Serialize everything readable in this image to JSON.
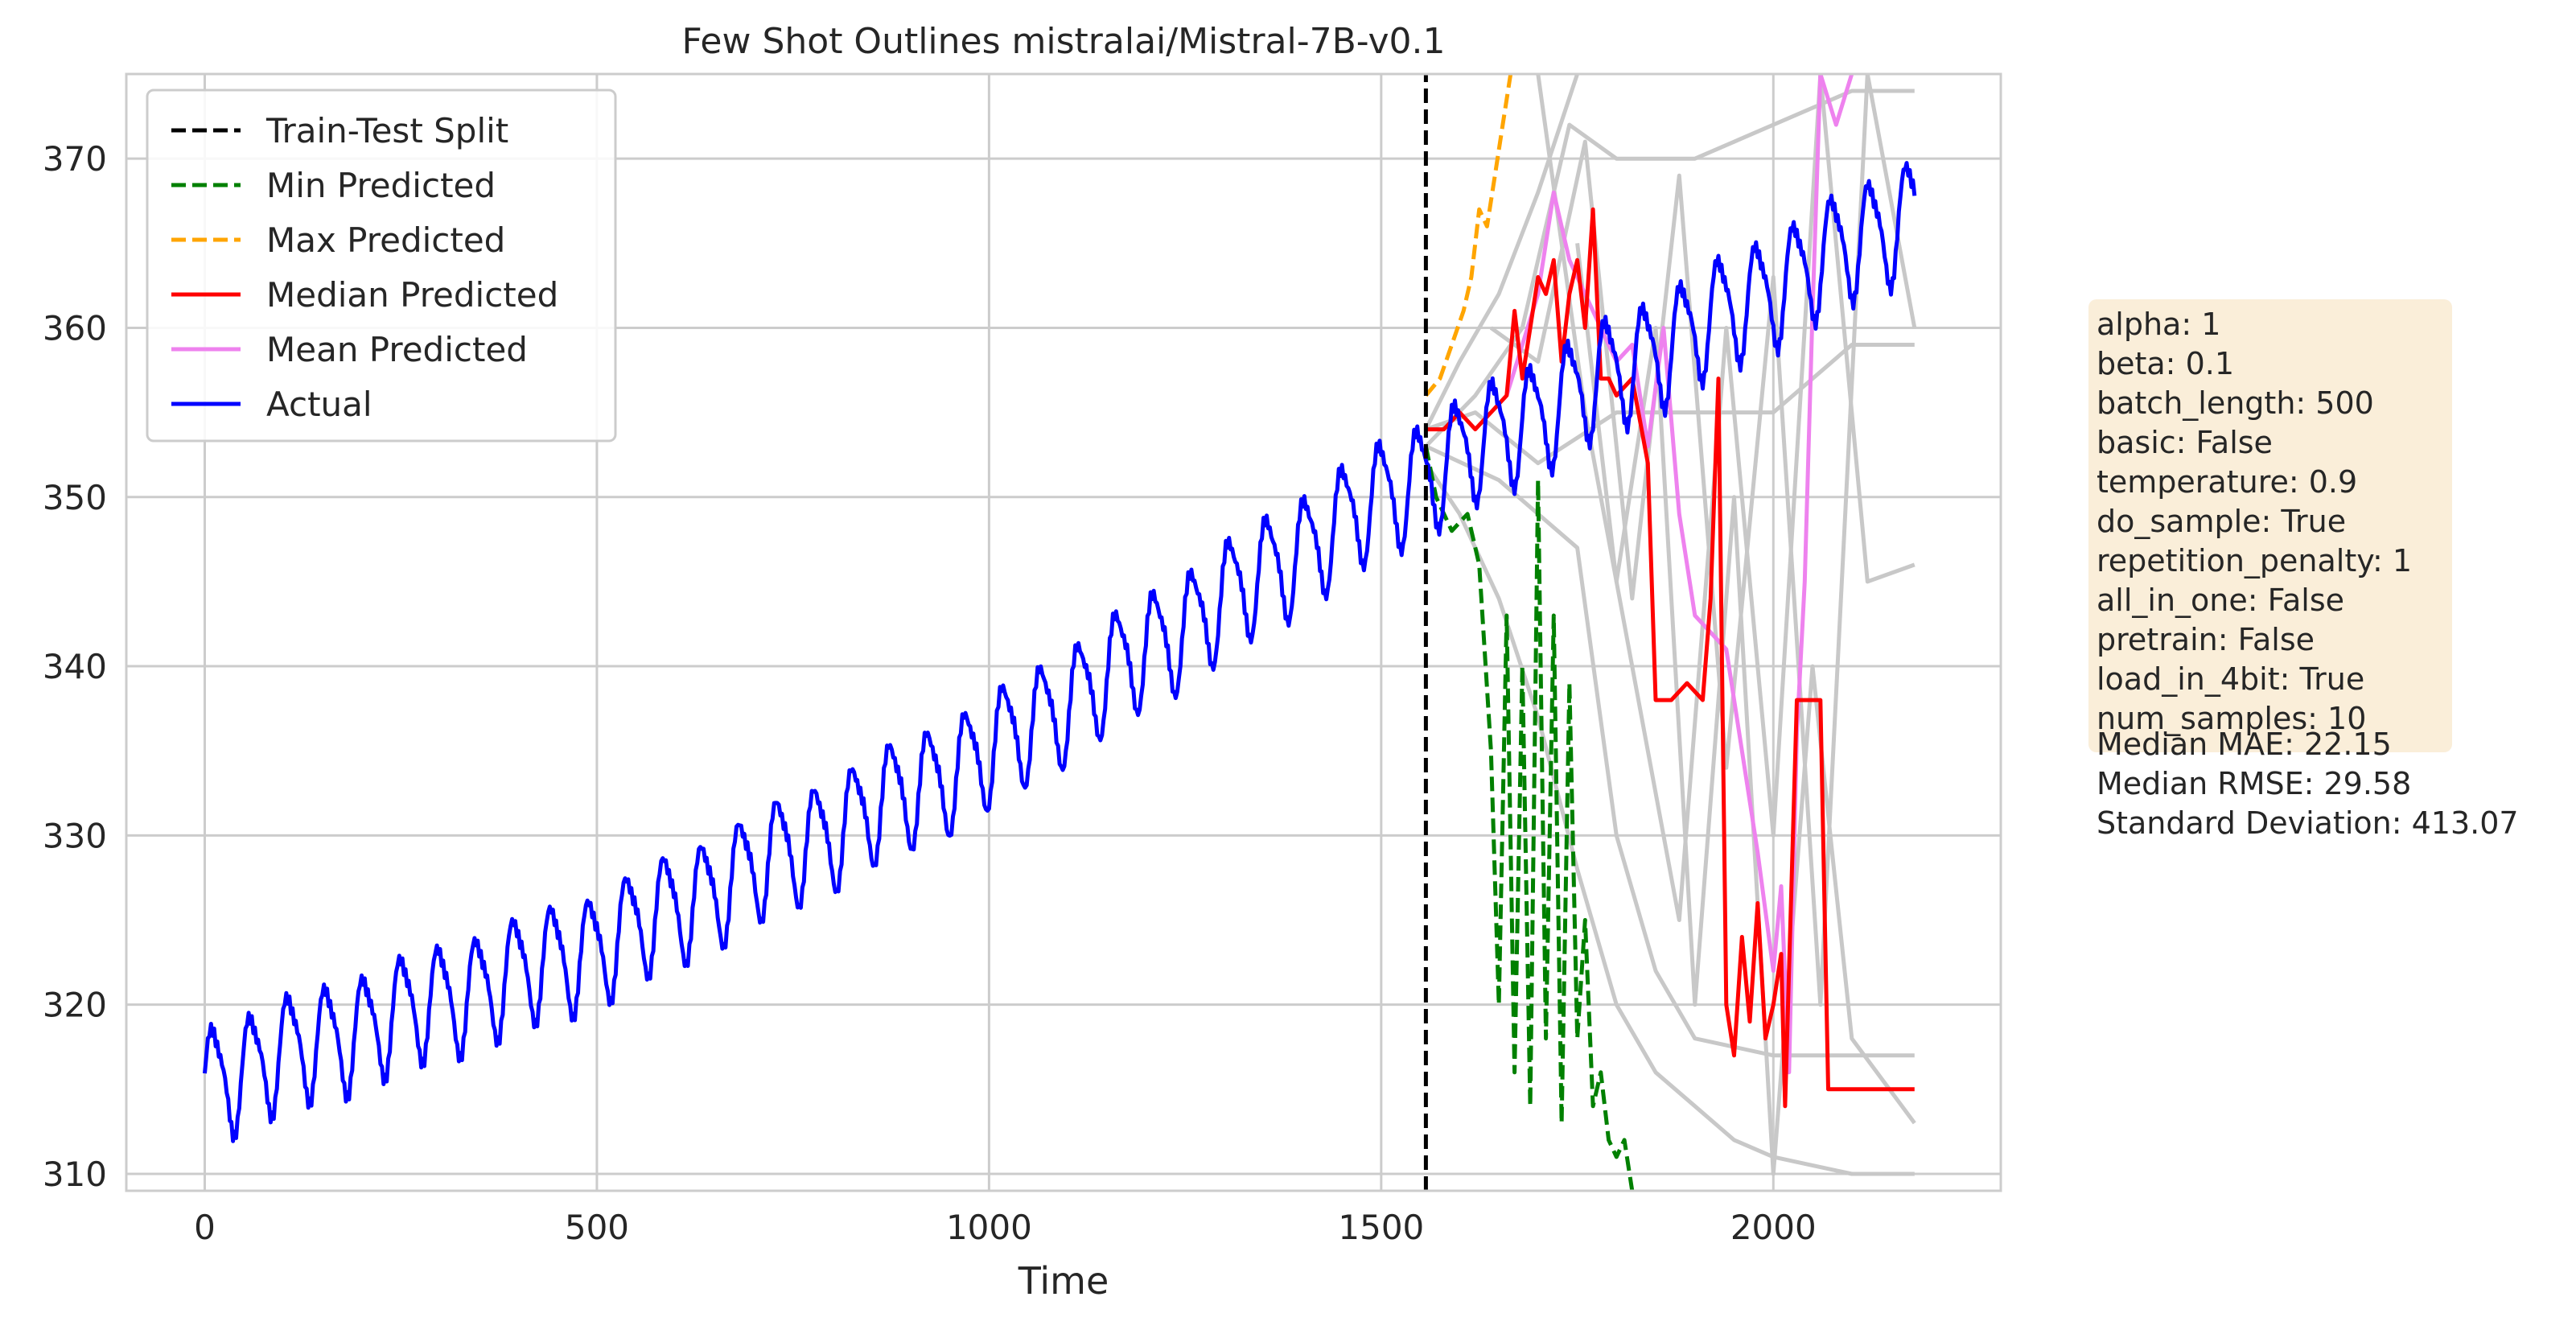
{
  "chart_data": {
    "type": "line",
    "title": "Few Shot Outlines mistralai/Mistral-7B-v0.1",
    "xlabel": "Time",
    "ylabel": "",
    "xlim": [
      -100,
      2290
    ],
    "ylim": [
      309,
      375
    ],
    "x_ticks": [
      0,
      500,
      1000,
      1500,
      2000
    ],
    "y_ticks": [
      310,
      320,
      330,
      340,
      350,
      360,
      370
    ],
    "grid": true,
    "legend_position": "top-left",
    "split_x": 1557,
    "series": [
      {
        "name": "Train-Test Split",
        "style": "dashed",
        "color": "#000000",
        "points": [
          [
            1557,
            309
          ],
          [
            1557,
            375
          ]
        ]
      },
      {
        "name": "Min Predicted",
        "style": "dashed",
        "color": "#008000",
        "points": [
          [
            1557,
            353
          ],
          [
            1570,
            350
          ],
          [
            1590,
            348
          ],
          [
            1610,
            349
          ],
          [
            1625,
            346
          ],
          [
            1640,
            335
          ],
          [
            1650,
            320
          ],
          [
            1660,
            343
          ],
          [
            1670,
            316
          ],
          [
            1680,
            340
          ],
          [
            1690,
            314
          ],
          [
            1700,
            351
          ],
          [
            1710,
            318
          ],
          [
            1720,
            343
          ],
          [
            1730,
            313
          ],
          [
            1740,
            339
          ],
          [
            1750,
            318
          ],
          [
            1760,
            325
          ],
          [
            1770,
            314
          ],
          [
            1780,
            316
          ],
          [
            1790,
            312
          ],
          [
            1800,
            311
          ],
          [
            1810,
            312
          ],
          [
            1820,
            309
          ]
        ]
      },
      {
        "name": "Max Predicted",
        "style": "dashed",
        "color": "#ffa500",
        "points": [
          [
            1557,
            356
          ],
          [
            1575,
            357
          ],
          [
            1590,
            359
          ],
          [
            1605,
            361
          ],
          [
            1615,
            363
          ],
          [
            1625,
            367
          ],
          [
            1635,
            366
          ],
          [
            1645,
            369
          ],
          [
            1655,
            372
          ],
          [
            1665,
            375
          ]
        ]
      },
      {
        "name": "Median Predicted",
        "style": "solid",
        "color": "#ff0000",
        "points": [
          [
            1557,
            354
          ],
          [
            1580,
            354
          ],
          [
            1600,
            355
          ],
          [
            1620,
            354
          ],
          [
            1640,
            355
          ],
          [
            1660,
            356
          ],
          [
            1670,
            361
          ],
          [
            1680,
            357
          ],
          [
            1690,
            360
          ],
          [
            1700,
            363
          ],
          [
            1710,
            362
          ],
          [
            1720,
            364
          ],
          [
            1730,
            358
          ],
          [
            1740,
            362
          ],
          [
            1750,
            364
          ],
          [
            1760,
            360
          ],
          [
            1770,
            367
          ],
          [
            1780,
            357
          ],
          [
            1790,
            357
          ],
          [
            1800,
            356
          ],
          [
            1820,
            357
          ],
          [
            1840,
            352
          ],
          [
            1850,
            338
          ],
          [
            1870,
            338
          ],
          [
            1890,
            339
          ],
          [
            1910,
            338
          ],
          [
            1920,
            344
          ],
          [
            1930,
            357
          ],
          [
            1940,
            320
          ],
          [
            1950,
            317
          ],
          [
            1960,
            324
          ],
          [
            1970,
            319
          ],
          [
            1980,
            326
          ],
          [
            1990,
            318
          ],
          [
            2000,
            320
          ],
          [
            2010,
            323
          ],
          [
            2015,
            314
          ],
          [
            2030,
            338
          ],
          [
            2060,
            338
          ],
          [
            2070,
            315
          ],
          [
            2100,
            315
          ],
          [
            2140,
            315
          ],
          [
            2180,
            315
          ]
        ]
      },
      {
        "name": "Mean Predicted",
        "style": "solid",
        "color": "#ee82ee",
        "points": [
          [
            1660,
            356
          ],
          [
            1680,
            359
          ],
          [
            1700,
            362
          ],
          [
            1720,
            368
          ],
          [
            1740,
            364
          ],
          [
            1760,
            362
          ],
          [
            1780,
            360
          ],
          [
            1800,
            358
          ],
          [
            1820,
            359
          ],
          [
            1840,
            353
          ],
          [
            1860,
            360
          ],
          [
            1880,
            349
          ],
          [
            1900,
            343
          ],
          [
            1920,
            342
          ],
          [
            1940,
            341
          ],
          [
            1960,
            335
          ],
          [
            1980,
            329
          ],
          [
            2000,
            322
          ],
          [
            2010,
            327
          ],
          [
            2020,
            316
          ],
          [
            2030,
            336
          ],
          [
            2040,
            345
          ],
          [
            2050,
            361
          ],
          [
            2060,
            375
          ],
          [
            2080,
            372
          ],
          [
            2100,
            375
          ]
        ]
      },
      {
        "name": "Actual",
        "style": "solid",
        "color": "#0000ff",
        "generator": "sinusoidal_trend",
        "x_range": [
          0,
          2180
        ],
        "trend_points": [
          [
            0,
            315.5
          ],
          [
            500,
            323.5
          ],
          [
            1000,
            335
          ],
          [
            1500,
            350
          ],
          [
            2180,
            367
          ]
        ],
        "period": 48,
        "amplitude": 3.1
      }
    ],
    "background_series": {
      "color": "#c8c8c8",
      "points": [
        [
          [
            1557,
            354
          ],
          [
            1600,
            358
          ],
          [
            1650,
            362
          ],
          [
            1700,
            368
          ],
          [
            1750,
            375
          ]
        ],
        [
          [
            1557,
            353
          ],
          [
            1620,
            356
          ],
          [
            1680,
            360
          ],
          [
            1740,
            372
          ],
          [
            1800,
            370
          ],
          [
            1900,
            370
          ],
          [
            2000,
            372
          ],
          [
            2100,
            374
          ],
          [
            2180,
            374
          ]
        ],
        [
          [
            1557,
            352
          ],
          [
            1600,
            349
          ],
          [
            1650,
            344
          ],
          [
            1700,
            337
          ],
          [
            1750,
            328
          ],
          [
            1800,
            320
          ],
          [
            1850,
            316
          ],
          [
            1900,
            314
          ],
          [
            1950,
            312
          ],
          [
            2000,
            311
          ],
          [
            2100,
            310
          ],
          [
            2180,
            310
          ]
        ],
        [
          [
            1557,
            354
          ],
          [
            1620,
            355
          ],
          [
            1700,
            352
          ],
          [
            1800,
            355
          ],
          [
            1900,
            355
          ],
          [
            2000,
            355
          ],
          [
            2100,
            359
          ],
          [
            2180,
            359
          ]
        ],
        [
          [
            1557,
            353
          ],
          [
            1650,
            351
          ],
          [
            1750,
            347
          ],
          [
            1800,
            330
          ],
          [
            1850,
            322
          ],
          [
            1900,
            318
          ],
          [
            2000,
            317
          ],
          [
            2100,
            317
          ],
          [
            2180,
            317
          ]
        ],
        [
          [
            1700,
            375
          ],
          [
            1760,
            355
          ],
          [
            1820,
            340
          ],
          [
            1880,
            325
          ],
          [
            1940,
            360
          ],
          [
            2000,
            330
          ],
          [
            2060,
            375
          ],
          [
            2120,
            345
          ],
          [
            2180,
            346
          ]
        ],
        [
          [
            1750,
            365
          ],
          [
            1800,
            345
          ],
          [
            1850,
            360
          ],
          [
            1900,
            320
          ],
          [
            1950,
            350
          ],
          [
            2000,
            310
          ],
          [
            2050,
            340
          ],
          [
            2100,
            318
          ],
          [
            2180,
            313
          ]
        ],
        [
          [
            1640,
            360
          ],
          [
            1700,
            358
          ],
          [
            1760,
            371
          ],
          [
            1820,
            344
          ],
          [
            1880,
            369
          ],
          [
            1940,
            334
          ],
          [
            2000,
            363
          ],
          [
            2060,
            320
          ],
          [
            2120,
            375
          ],
          [
            2180,
            360
          ]
        ]
      ]
    },
    "info_box": [
      "alpha: 1",
      "beta: 0.1",
      "batch_length: 500",
      "basic: False",
      "temperature: 0.9",
      "do_sample: True",
      "repetition_penalty: 1",
      "all_in_one: False",
      "pretrain: False",
      "load_in_4bit: True",
      "num_samples: 10"
    ],
    "metrics": [
      "Median MAE: 22.15",
      "Median RMSE: 29.58",
      "Standard Deviation: 413.07"
    ]
  }
}
